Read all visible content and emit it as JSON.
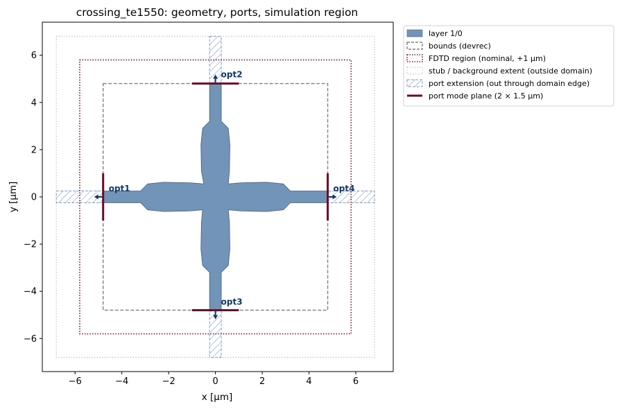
{
  "chart_data": {
    "type": "diagram",
    "title": "crossing_te1550: geometry, ports, simulation region",
    "xlabel": "x [µm]",
    "ylabel": "y [µm]",
    "xlim": [
      -7.4,
      7.6
    ],
    "ylim": [
      -7.4,
      7.4
    ],
    "xticks": [
      -6,
      -4,
      -2,
      0,
      2,
      4,
      6
    ],
    "yticks": [
      -6,
      -4,
      -2,
      0,
      2,
      4,
      6
    ],
    "tick_labels": [
      "−6",
      "−4",
      "−2",
      "0",
      "2",
      "4",
      "6"
    ],
    "colors": {
      "device_fill": "#7194b8",
      "device_edge": "#4a607a",
      "bounds": "#808080",
      "fdtd": "#7a1020",
      "stub": "#b8bcc4",
      "port_ext": "#7f9cc0",
      "port_plane": "#6a0a28",
      "arrow": "#12386a"
    },
    "geometry": {
      "layer": "layer 1/0",
      "waveguide_width": 0.5,
      "outline": [
        [
          -4.8,
          0.25
        ],
        [
          -3.2,
          0.25
        ],
        [
          -2.9,
          0.55
        ],
        [
          -2.2,
          0.62
        ],
        [
          -1.1,
          0.6
        ],
        [
          -0.5,
          0.55
        ],
        [
          -0.6,
          1.1
        ],
        [
          -0.62,
          2.2
        ],
        [
          -0.55,
          2.9
        ],
        [
          -0.25,
          3.2
        ],
        [
          -0.25,
          4.8
        ],
        [
          0.25,
          4.8
        ],
        [
          0.25,
          3.2
        ],
        [
          0.55,
          2.9
        ],
        [
          0.62,
          2.2
        ],
        [
          0.6,
          1.1
        ],
        [
          0.55,
          0.55
        ],
        [
          1.1,
          0.6
        ],
        [
          2.2,
          0.62
        ],
        [
          2.9,
          0.55
        ],
        [
          3.2,
          0.25
        ],
        [
          4.8,
          0.25
        ],
        [
          4.8,
          -0.25
        ],
        [
          3.2,
          -0.25
        ],
        [
          2.9,
          -0.55
        ],
        [
          2.2,
          -0.62
        ],
        [
          1.1,
          -0.6
        ],
        [
          0.55,
          -0.55
        ],
        [
          0.6,
          -1.1
        ],
        [
          0.62,
          -2.2
        ],
        [
          0.55,
          -2.9
        ],
        [
          0.25,
          -3.2
        ],
        [
          0.25,
          -4.8
        ],
        [
          -0.25,
          -4.8
        ],
        [
          -0.25,
          -3.2
        ],
        [
          -0.55,
          -2.9
        ],
        [
          -0.62,
          -2.2
        ],
        [
          -0.6,
          -1.1
        ],
        [
          -0.55,
          -0.55
        ],
        [
          -1.1,
          -0.6
        ],
        [
          -2.2,
          -0.62
        ],
        [
          -2.9,
          -0.55
        ],
        [
          -3.2,
          -0.25
        ],
        [
          -4.8,
          -0.25
        ]
      ]
    },
    "bounds": {
      "xmin": -4.8,
      "xmax": 4.8,
      "ymin": -4.8,
      "ymax": 4.8
    },
    "fdtd_region": {
      "xmin": -5.8,
      "xmax": 5.8,
      "ymin": -5.8,
      "ymax": 5.8
    },
    "stub_extent": {
      "xmin": -6.8,
      "xmax": 6.8,
      "ymin": -6.8,
      "ymax": 6.8
    },
    "ports": [
      {
        "name": "opt1",
        "x": -4.8,
        "y": 0,
        "direction": "left"
      },
      {
        "name": "opt2",
        "x": 0,
        "y": 4.8,
        "direction": "up"
      },
      {
        "name": "opt3",
        "x": 0,
        "y": -4.8,
        "direction": "down"
      },
      {
        "name": "opt4",
        "x": 4.8,
        "y": 0,
        "direction": "right"
      }
    ],
    "port_plane_size": 2,
    "legend": {
      "placement": "outside upper right",
      "entries": [
        {
          "label": "layer 1/0",
          "style": "fill"
        },
        {
          "label": "bounds (devrec)",
          "style": "dashed-box"
        },
        {
          "label": "FDTD region (nominal, +1 µm)",
          "style": "dotted-box"
        },
        {
          "label": "stub / background extent (outside domain)",
          "style": "fine-dotted-box"
        },
        {
          "label": "port extension (out through domain edge)",
          "style": "hatched"
        },
        {
          "label": "port mode plane (2 × 1.5 µm)",
          "style": "line"
        }
      ]
    }
  }
}
